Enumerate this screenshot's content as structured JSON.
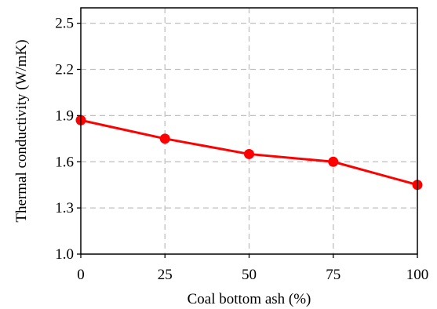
{
  "chart_data": {
    "type": "line",
    "title": "",
    "xlabel": "Coal bottom ash (%)",
    "ylabel": "Thermal conductivity (W/mK)",
    "x": [
      0,
      25,
      50,
      75,
      100
    ],
    "xlim": [
      0,
      100
    ],
    "ylim": [
      1.0,
      2.6
    ],
    "xticks": [
      0,
      25,
      50,
      75,
      100
    ],
    "yticks": [
      1.0,
      1.3,
      1.6,
      1.9,
      2.2,
      2.5
    ],
    "ytick_labels": [
      "1.0",
      "1.3",
      "1.6",
      "1.9",
      "2.2",
      "2.5"
    ],
    "grid": true,
    "series": [
      {
        "name": "",
        "color": "#ff0000",
        "marker": "circle",
        "values": [
          1.87,
          1.75,
          1.65,
          1.6,
          1.45
        ]
      }
    ]
  }
}
